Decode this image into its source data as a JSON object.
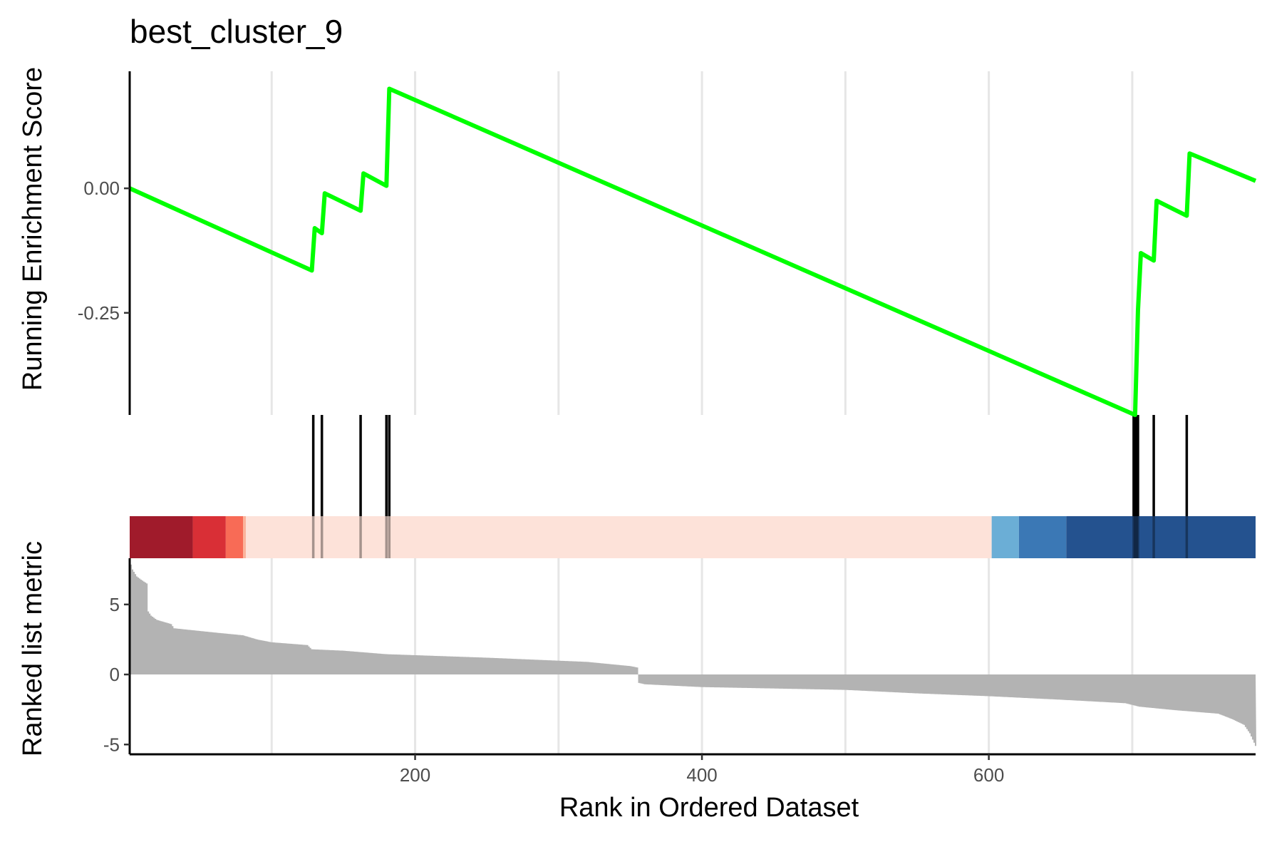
{
  "chart_data": {
    "type": "line",
    "title": "best_cluster_9",
    "xlabel": "Rank in Ordered Dataset",
    "xlim": [
      1,
      786
    ],
    "x_ticks": [
      {
        "value": 200,
        "label": "200"
      },
      {
        "value": 400,
        "label": "400"
      },
      {
        "value": 600,
        "label": "600"
      }
    ],
    "grid": "vertical major and minor lines",
    "panels": [
      {
        "id": "running-es",
        "ylabel": "Running Enrichment Score",
        "ylim": [
          -0.455,
          0.235
        ],
        "y_ticks": [
          {
            "value": 0.0,
            "label": "0.00"
          },
          {
            "value": -0.25,
            "label": "-0.25"
          }
        ],
        "series": [
          {
            "color": "#00FF00",
            "points": [
              [
                1,
                0.0
              ],
              [
                128,
                -0.165
              ],
              [
                130,
                -0.08
              ],
              [
                135,
                -0.09
              ],
              [
                137,
                -0.01
              ],
              [
                162,
                -0.045
              ],
              [
                164,
                0.03
              ],
              [
                180,
                0.005
              ],
              [
                182,
                0.2
              ],
              [
                702,
                -0.455
              ],
              [
                704,
                -0.245
              ],
              [
                706,
                -0.13
              ],
              [
                715,
                -0.145
              ],
              [
                717,
                -0.025
              ],
              [
                738,
                -0.055
              ],
              [
                740,
                0.07
              ],
              [
                786,
                0.015
              ]
            ]
          }
        ]
      },
      {
        "id": "gene-hits",
        "hit_ranks": [
          129,
          135,
          162,
          180,
          182,
          701,
          702,
          703,
          704,
          715,
          738
        ]
      },
      {
        "id": "rank-color-bar",
        "segments": [
          {
            "from": 1,
            "to": 45,
            "color": "#A01B2B"
          },
          {
            "from": 45,
            "to": 68,
            "color": "#D92F36"
          },
          {
            "from": 68,
            "to": 80,
            "color": "#F86B56"
          },
          {
            "from": 80,
            "to": 82,
            "color": "#FBB49C"
          },
          {
            "from": 82,
            "to": 602,
            "color": "#FDE2D9"
          },
          {
            "from": 602,
            "to": 621,
            "color": "#6BAED6"
          },
          {
            "from": 621,
            "to": 654,
            "color": "#3B78B5"
          },
          {
            "from": 654,
            "to": 786,
            "color": "#24528F"
          }
        ]
      },
      {
        "id": "ranked-metric",
        "ylabel": "Ranked list metric",
        "ylim": [
          -5.7,
          8.3
        ],
        "y_ticks": [
          {
            "value": 5,
            "label": "5"
          },
          {
            "value": 0,
            "label": "0"
          },
          {
            "value": -5,
            "label": "-5"
          }
        ],
        "fill": "#B3B3B3",
        "profile": [
          [
            1,
            8.2
          ],
          [
            3,
            7.5
          ],
          [
            6,
            7.0
          ],
          [
            10,
            6.7
          ],
          [
            13,
            6.5
          ],
          [
            14,
            4.5
          ],
          [
            16,
            4.2
          ],
          [
            20,
            3.9
          ],
          [
            30,
            3.6
          ],
          [
            32,
            3.3
          ],
          [
            60,
            3.0
          ],
          [
            80,
            2.8
          ],
          [
            90,
            2.5
          ],
          [
            100,
            2.3
          ],
          [
            125,
            2.1
          ],
          [
            128,
            1.8
          ],
          [
            150,
            1.7
          ],
          [
            180,
            1.45
          ],
          [
            250,
            1.2
          ],
          [
            320,
            0.9
          ],
          [
            350,
            0.6
          ],
          [
            355,
            0.5
          ],
          [
            356,
            -0.6
          ],
          [
            360,
            -0.7
          ],
          [
            400,
            -0.9
          ],
          [
            500,
            -1.1
          ],
          [
            550,
            -1.35
          ],
          [
            600,
            -1.55
          ],
          [
            650,
            -1.8
          ],
          [
            695,
            -2.05
          ],
          [
            705,
            -2.3
          ],
          [
            730,
            -2.55
          ],
          [
            760,
            -2.8
          ],
          [
            770,
            -3.2
          ],
          [
            778,
            -3.6
          ],
          [
            782,
            -4.2
          ],
          [
            786,
            -5.1
          ]
        ]
      }
    ]
  }
}
